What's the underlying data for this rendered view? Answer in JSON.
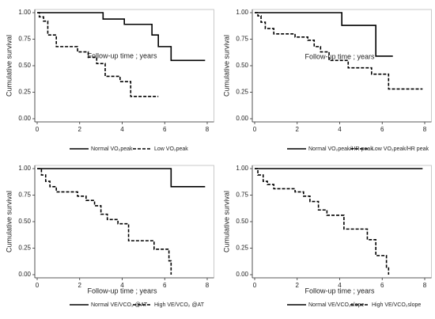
{
  "chart_data": [
    {
      "type": "step",
      "y_label": "Cumulative survival",
      "x_label": "Follow-up time ; years",
      "xlim": [
        0,
        8.2
      ],
      "ylim": [
        0,
        1
      ],
      "xticks": [
        0,
        2,
        4,
        6,
        8
      ],
      "yticks": [
        {
          "value": 0,
          "label": "0.00"
        },
        {
          "value": 0.25,
          "label": "0.25"
        },
        {
          "value": 0.5,
          "label": "0.50"
        },
        {
          "value": 0.75,
          "label": "0.75"
        },
        {
          "value": 1,
          "label": "1.00"
        }
      ],
      "series": [
        {
          "name": "Normal VO₂peak",
          "color": "#000000",
          "style": "solid",
          "x": [
            0,
            3.1,
            4.1,
            5.4,
            5.7,
            6.3,
            7.9
          ],
          "values": [
            1,
            0.94,
            0.89,
            0.79,
            0.68,
            0.55,
            0.55
          ]
        },
        {
          "name": "Low VO₂peak",
          "color": "#000000",
          "style": "dashed",
          "x": [
            0,
            0.1,
            0.3,
            0.5,
            0.9,
            1.9,
            2.4,
            2.8,
            3.2,
            3.9,
            4.4,
            5.7
          ],
          "values": [
            1,
            0.96,
            0.92,
            0.79,
            0.68,
            0.63,
            0.58,
            0.52,
            0.4,
            0.35,
            0.21,
            0.21
          ]
        }
      ]
    },
    {
      "type": "step",
      "y_label": "Cumulative survival",
      "x_label": "Follow-up time ; years",
      "xlim": [
        0,
        8.2
      ],
      "ylim": [
        0,
        1
      ],
      "xticks": [
        0,
        2,
        4,
        6,
        8
      ],
      "yticks": [
        {
          "value": 0,
          "label": "0.00"
        },
        {
          "value": 0.25,
          "label": "0.25"
        },
        {
          "value": 0.5,
          "label": "0.50"
        },
        {
          "value": 0.75,
          "label": "0.75"
        },
        {
          "value": 1,
          "label": "1.00"
        }
      ],
      "series": [
        {
          "name": "Normal VO₂peak/HR peak",
          "color": "#000000",
          "style": "solid",
          "x": [
            0,
            4.1,
            5.7,
            6.5
          ],
          "values": [
            1,
            0.88,
            0.59,
            0.59
          ]
        },
        {
          "name": "Low VO₂peak/HR peak",
          "color": "#000000",
          "style": "dashed",
          "x": [
            0,
            0.15,
            0.3,
            0.5,
            0.9,
            1.9,
            2.5,
            2.8,
            3.1,
            3.5,
            4.4,
            5.5,
            6.3,
            7.9
          ],
          "values": [
            1,
            0.97,
            0.91,
            0.85,
            0.8,
            0.77,
            0.74,
            0.68,
            0.63,
            0.55,
            0.48,
            0.42,
            0.28,
            0.28
          ]
        }
      ]
    },
    {
      "type": "step",
      "y_label": "Cumulative survival",
      "x_label": "Follow-up time ; years",
      "xlim": [
        0,
        8.2
      ],
      "ylim": [
        0,
        1
      ],
      "xticks": [
        0,
        2,
        4,
        6,
        8
      ],
      "yticks": [
        {
          "value": 0,
          "label": "0.00"
        },
        {
          "value": 0.25,
          "label": "0.25"
        },
        {
          "value": 0.5,
          "label": "0.50"
        },
        {
          "value": 0.75,
          "label": "0.75"
        },
        {
          "value": 1,
          "label": "1.00"
        }
      ],
      "series": [
        {
          "name": "Normal VE/VCO₂ @AT",
          "color": "#000000",
          "style": "solid",
          "x": [
            0,
            6.3,
            7.9
          ],
          "values": [
            1,
            0.83,
            0.83
          ]
        },
        {
          "name": "High VE/VCO₂ @AT",
          "color": "#000000",
          "style": "dashed",
          "x": [
            0,
            0.2,
            0.4,
            0.6,
            0.9,
            1.9,
            2.3,
            2.7,
            3.0,
            3.3,
            3.8,
            4.3,
            5.5,
            6.2,
            6.3
          ],
          "values": [
            1,
            0.94,
            0.88,
            0.83,
            0.78,
            0.74,
            0.7,
            0.65,
            0.57,
            0.52,
            0.48,
            0.32,
            0.24,
            0.13,
            0
          ]
        }
      ]
    },
    {
      "type": "step",
      "y_label": "Cumulative survival",
      "x_label": "Follow-up time ; years",
      "xlim": [
        0,
        8.2
      ],
      "ylim": [
        0,
        1
      ],
      "xticks": [
        0,
        2,
        4,
        6,
        8
      ],
      "yticks": [
        {
          "value": 0,
          "label": "0.00"
        },
        {
          "value": 0.25,
          "label": "0.25"
        },
        {
          "value": 0.5,
          "label": "0.50"
        },
        {
          "value": 0.75,
          "label": "0.75"
        },
        {
          "value": 1,
          "label": "1.00"
        }
      ],
      "series": [
        {
          "name": "Normal VE/VCO₂slope",
          "color": "#000000",
          "style": "solid",
          "x": [
            0,
            7.9
          ],
          "values": [
            1,
            1
          ]
        },
        {
          "name": "High VE/VCO₂slope",
          "color": "#000000",
          "style": "dashed",
          "x": [
            0,
            0.15,
            0.4,
            0.6,
            0.9,
            1.9,
            2.3,
            2.6,
            3.0,
            3.4,
            4.2,
            5.3,
            5.7,
            6.2,
            6.3
          ],
          "values": [
            1,
            0.94,
            0.88,
            0.85,
            0.81,
            0.78,
            0.74,
            0.69,
            0.61,
            0.56,
            0.43,
            0.33,
            0.18,
            0.07,
            0
          ]
        }
      ]
    }
  ]
}
